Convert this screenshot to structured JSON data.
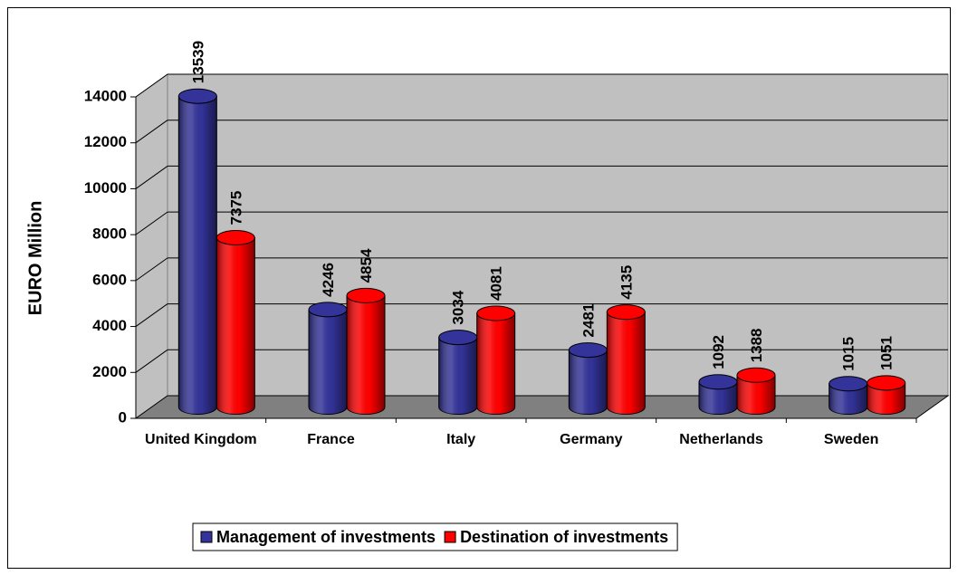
{
  "chart_data": {
    "type": "bar",
    "y_label": "EURO Million",
    "categories": [
      "United Kingdom",
      "France",
      "Italy",
      "Germany",
      "Netherlands",
      "Sweden"
    ],
    "series": [
      {
        "name": "Management of investments",
        "color": "#333399",
        "values": [
          13539,
          4246,
          3034,
          2481,
          1092,
          1015
        ]
      },
      {
        "name": "Destination of investments",
        "color": "#ff0000",
        "values": [
          7375,
          4854,
          4081,
          4135,
          1388,
          1051
        ]
      }
    ],
    "ylim": [
      0,
      14000
    ],
    "yticks": [
      0,
      2000,
      4000,
      6000,
      8000,
      10000,
      12000,
      14000
    ],
    "grid": true,
    "legend": "bottom"
  }
}
